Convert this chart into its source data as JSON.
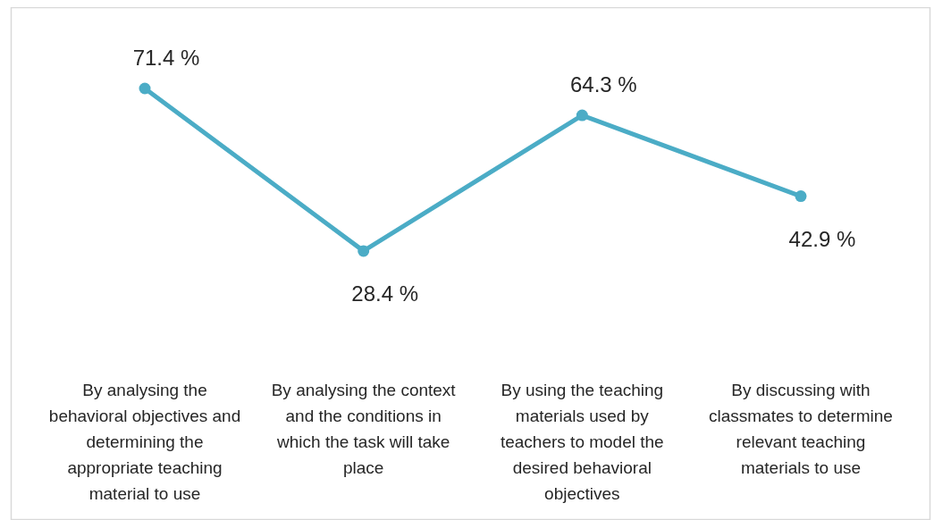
{
  "chart_data": {
    "type": "line",
    "categories": [
      "By analysing the behavioral objectives and determining the appropriate teaching material to use",
      "By analysing the context and the conditions in which the task will take place",
      "By using the teaching materials used by teachers to model the desired behavioral objectives",
      "By discussing with classmates to determine relevant teaching materials to use"
    ],
    "series": [
      {
        "color": "#4bacc6",
        "values": [
          71.4,
          28.4,
          64.3,
          42.9
        ],
        "value_labels": [
          "71.4 %",
          "28.4 %",
          "64.3 %",
          "42.9 %"
        ]
      }
    ],
    "marker": "circle",
    "line_style": "solid"
  }
}
